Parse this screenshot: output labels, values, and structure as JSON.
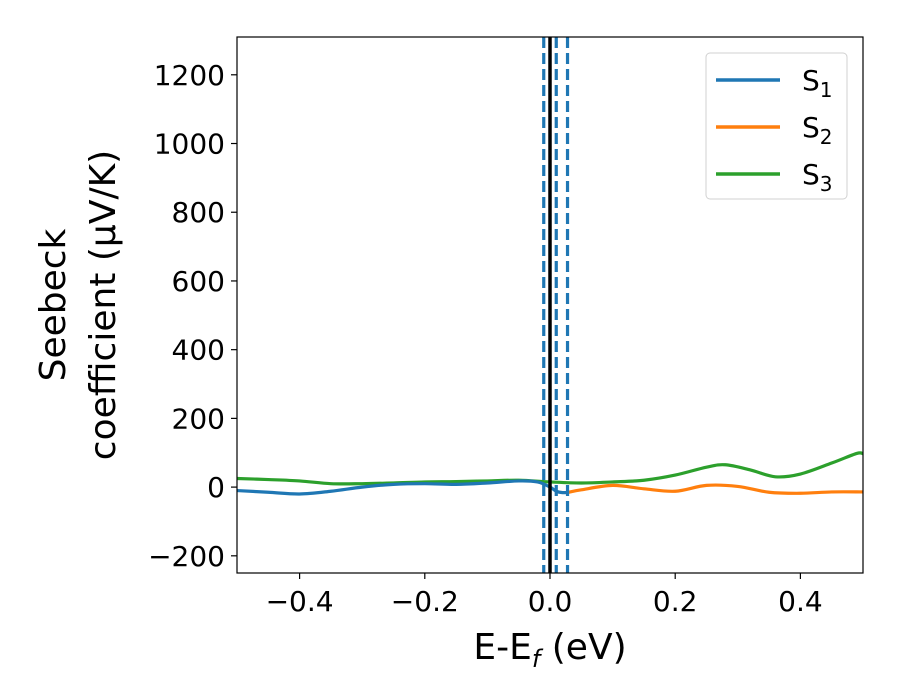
{
  "chart_data": {
    "type": "line",
    "xlabel_main": "E-E",
    "xlabel_sub": "f",
    "xlabel_unit": " (eV)",
    "ylabel_line1": "Seebeck",
    "ylabel_line2": "coefficient  (μV/K)",
    "xlim": [
      -0.5,
      0.5
    ],
    "ylim": [
      -250,
      1310
    ],
    "xticks": [
      -0.4,
      -0.2,
      0.0,
      0.2,
      0.4
    ],
    "xtick_labels": [
      "−0.4",
      "−0.2",
      "0.0",
      "0.2",
      "0.4"
    ],
    "yticks": [
      -200,
      0,
      200,
      400,
      600,
      800,
      1000,
      1200
    ],
    "ytick_labels": [
      "−200",
      "0",
      "200",
      "400",
      "600",
      "800",
      "1000",
      "1200"
    ],
    "grid": false,
    "legend_position": "top-right",
    "vlines": [
      {
        "x": 0.0,
        "style": "solid",
        "color": "#000000"
      },
      {
        "x": -0.01,
        "style": "dashed",
        "color": "#1f77b4"
      },
      {
        "x": 0.01,
        "style": "dashed",
        "color": "#1f77b4"
      },
      {
        "x": 0.028,
        "style": "dashed",
        "color": "#1f77b4"
      }
    ],
    "series": [
      {
        "name": "S",
        "sub": "1",
        "color": "#1f77b4",
        "x": [
          -0.5,
          -0.45,
          -0.4,
          -0.35,
          -0.3,
          -0.25,
          -0.2,
          -0.15,
          -0.1,
          -0.05,
          -0.02,
          0.0,
          0.01,
          0.02,
          0.03
        ],
        "y": [
          -10,
          -15,
          -20,
          -12,
          0,
          8,
          10,
          8,
          12,
          18,
          15,
          0,
          -12,
          -16,
          -15
        ]
      },
      {
        "name": "S",
        "sub": "2",
        "color": "#ff7f0e",
        "x": [
          0.03,
          0.05,
          0.1,
          0.15,
          0.2,
          0.25,
          0.3,
          0.35,
          0.4,
          0.45,
          0.5
        ],
        "y": [
          -15,
          -8,
          5,
          -5,
          -12,
          5,
          2,
          -15,
          -18,
          -14,
          -14
        ]
      },
      {
        "name": "S",
        "sub": "3",
        "color": "#2ca02c",
        "x": [
          -0.5,
          -0.45,
          -0.4,
          -0.35,
          -0.3,
          -0.25,
          -0.2,
          -0.15,
          -0.1,
          -0.05,
          0.0,
          0.05,
          0.1,
          0.15,
          0.2,
          0.25,
          0.28,
          0.32,
          0.36,
          0.4,
          0.45,
          0.49,
          0.5
        ],
        "y": [
          25,
          22,
          18,
          10,
          10,
          12,
          15,
          16,
          18,
          20,
          15,
          12,
          15,
          20,
          35,
          58,
          65,
          50,
          30,
          38,
          70,
          98,
          97
        ]
      }
    ]
  }
}
